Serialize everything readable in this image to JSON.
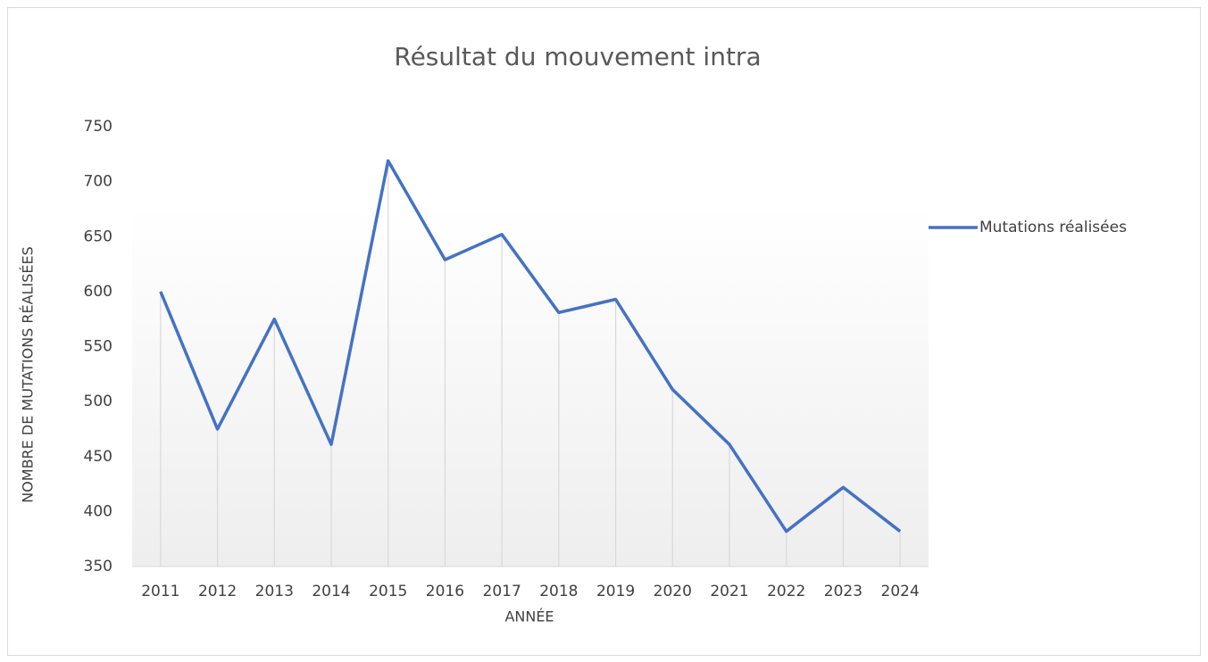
{
  "chart_data": {
    "type": "line",
    "title": "Résultat du mouvement intra",
    "xlabel": "ANNÉE",
    "ylabel": "NOMBRE DE MUTATIONS RÉALISÉES",
    "categories": [
      "2011",
      "2012",
      "2013",
      "2014",
      "2015",
      "2016",
      "2017",
      "2018",
      "2019",
      "2020",
      "2021",
      "2022",
      "2023",
      "2024"
    ],
    "series": [
      {
        "name": "Mutations réalisées",
        "color": "#4472c4",
        "values": [
          600,
          475,
          575,
          461,
          719,
          629,
          652,
          581,
          593,
          511,
          461,
          382,
          422,
          382
        ]
      }
    ],
    "ylim": [
      350,
      750
    ],
    "yticks": [
      350,
      400,
      450,
      500,
      550,
      600,
      650,
      700,
      750
    ],
    "grid": false,
    "drop_lines": true,
    "legend": "right"
  }
}
